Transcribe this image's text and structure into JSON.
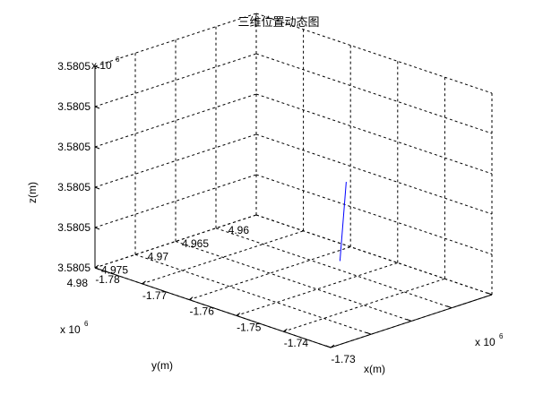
{
  "chart_data": {
    "type": "line3d",
    "title": "三维位置动态图",
    "xlabel": "x(m)",
    "ylabel": "y(m)",
    "zlabel": "z(m)",
    "x_ticks": [
      "-1.78",
      "-1.77",
      "-1.76",
      "-1.75",
      "-1.74",
      "-1.73"
    ],
    "y_ticks": [
      "4.96",
      "4.965",
      "4.97",
      "4.975",
      "4.98"
    ],
    "z_ticks": [
      "3.5805",
      "3.5805",
      "3.5805",
      "3.5805",
      "3.5805",
      "3.5805"
    ],
    "x_exponent": "x 10",
    "y_exponent": "x 10",
    "z_exponent": "x 10",
    "exponent_power": "6",
    "grid": true,
    "line_color": "#0000ff",
    "series": [
      {
        "points": [
          {
            "x": -1.7566,
            "y": 4.9633,
            "z": 3.5805
          },
          {
            "x": -1.7426,
            "y": 4.9707,
            "z": 3.58053
          }
        ]
      }
    ]
  }
}
